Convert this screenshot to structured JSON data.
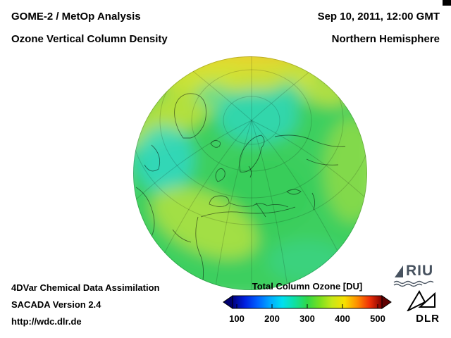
{
  "header": {
    "title_line1": "GOME-2 / MetOp Analysis",
    "title_line2": "Ozone Vertical Column Density",
    "datetime": "Sep 10, 2011, 12:00 GMT",
    "region": "Northern Hemisphere"
  },
  "map": {
    "kind": "heatmap-globe",
    "palette": {
      "base_green": "#3ccf5e",
      "cyan_low": "#2fd8cc",
      "yellow_high": "#e2e636",
      "orange_high": "#f2a81e"
    }
  },
  "footer": {
    "line1": "4DVar Chemical Data Assimilation",
    "line2": "SACADA Version 2.4",
    "line3": "http://wdc.dlr.de"
  },
  "colorbar": {
    "title": "Total Column Ozone [DU]",
    "ticks": [
      "100",
      "200",
      "300",
      "400",
      "500"
    ],
    "range": [
      100,
      500
    ],
    "gradient": [
      "#000080",
      "#0020e0",
      "#0060ff",
      "#00a8ff",
      "#00e0f0",
      "#10e0a0",
      "#30d848",
      "#78e020",
      "#c8e818",
      "#f8e000",
      "#ff9000",
      "#f03008",
      "#800000"
    ],
    "arrow_left_color": "#000070",
    "arrow_right_color": "#600000"
  },
  "logos": {
    "riu_label": "RIU",
    "dlr_label": "DLR"
  }
}
